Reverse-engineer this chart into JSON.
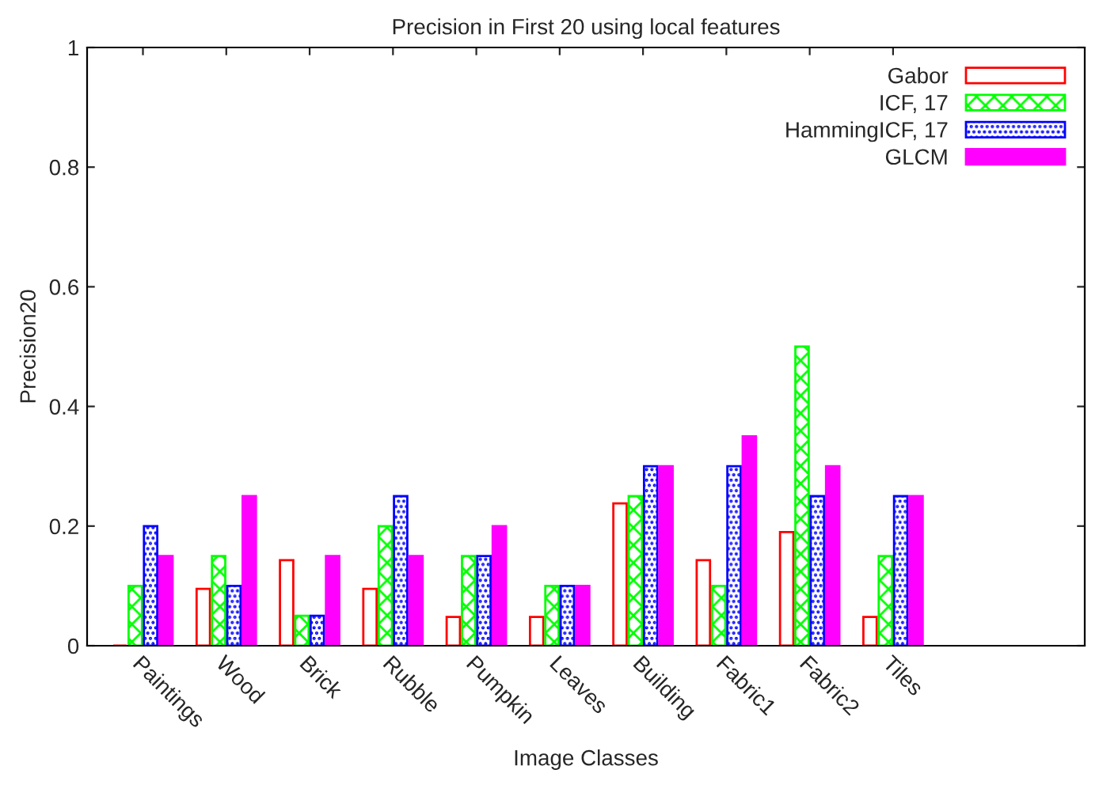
{
  "chart_data": {
    "type": "bar",
    "title": "Precision in First 20 using local features",
    "xlabel": "Image Classes",
    "ylabel": "Precision20",
    "categories": [
      "Paintings",
      "Wood",
      "Brick",
      "Rubble",
      "Pumpkin",
      "Leaves",
      "Building",
      "Fabric1",
      "Fabric2",
      "Tiles"
    ],
    "series": [
      {
        "name": "Gabor",
        "color": "#ff0000",
        "values": [
          0,
          0.095,
          0.143,
          0.095,
          0.048,
          0.048,
          0.238,
          0.143,
          0.19,
          0.048
        ]
      },
      {
        "name": "ICF, 17",
        "color": "#00ff00",
        "values": [
          0.1,
          0.15,
          0.05,
          0.2,
          0.15,
          0.1,
          0.25,
          0.1,
          0.5,
          0.15
        ]
      },
      {
        "name": "HammingICF, 17",
        "color": "#0000ff",
        "values": [
          0.2,
          0.1,
          0.05,
          0.25,
          0.15,
          0.1,
          0.3,
          0.3,
          0.25,
          0.25
        ]
      },
      {
        "name": "GLCM",
        "color": "#ff00ff",
        "values": [
          0.15,
          0.25,
          0.15,
          0.15,
          0.2,
          0.1,
          0.3,
          0.35,
          0.3,
          0.25
        ]
      }
    ],
    "ylim": [
      0,
      1
    ],
    "yticks": [
      0,
      0.2,
      0.4,
      0.6,
      0.8,
      1
    ],
    "grid": false,
    "legend": "top right"
  }
}
